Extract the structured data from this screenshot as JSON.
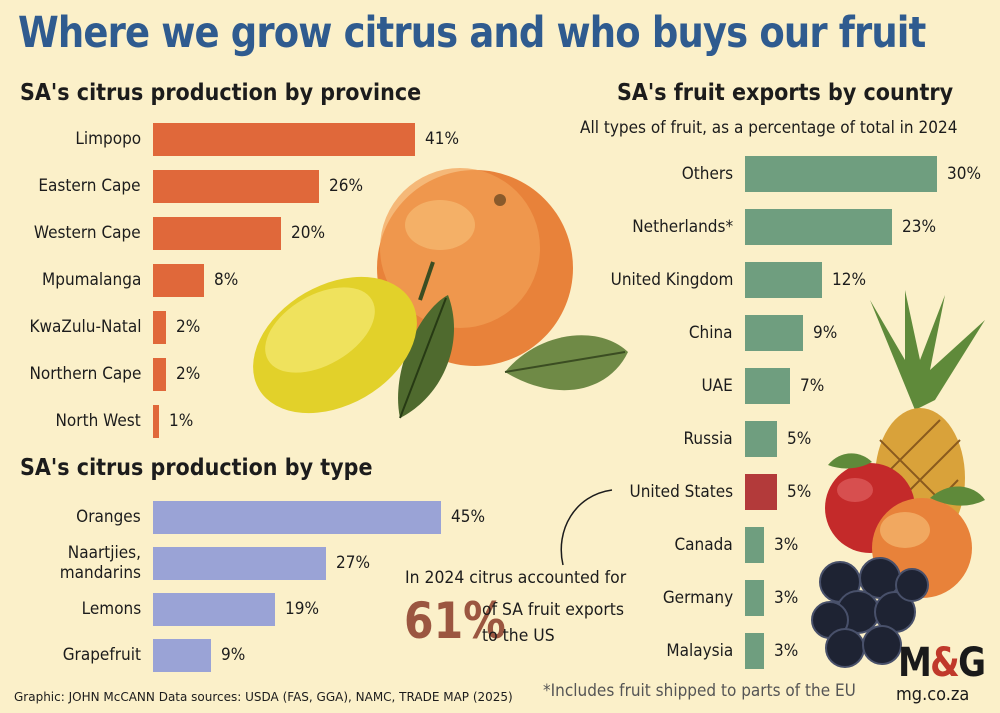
{
  "title": "Where we grow citrus and who buys our fruit",
  "colors": {
    "title": "#2f5b8f",
    "province_bar": "#e0683a",
    "type_bar": "#9aa3d6",
    "export_bar": "#6f9e7f",
    "export_highlight": "#b33a3a",
    "annotation": "#9b5640"
  },
  "chart_data": [
    {
      "type": "bar",
      "orientation": "horizontal",
      "title": "SA's citrus production by province",
      "categories": [
        "Limpopo",
        "Eastern Cape",
        "Western Cape",
        "Mpumalanga",
        "KwaZulu-Natal",
        "Northern Cape",
        "North West"
      ],
      "values": [
        41,
        26,
        20,
        8,
        2,
        2,
        1
      ],
      "value_labels": [
        "41%",
        "26%",
        "20%",
        "8%",
        "2%",
        "2%",
        "1%"
      ],
      "unit": "%"
    },
    {
      "type": "bar",
      "orientation": "horizontal",
      "title": "SA's citrus production by type",
      "categories": [
        "Oranges",
        "Naartjies, mandarins",
        "Lemons",
        "Grapefruit"
      ],
      "values": [
        45,
        27,
        19,
        9
      ],
      "value_labels": [
        "45%",
        "27%",
        "19%",
        "9%"
      ],
      "unit": "%"
    },
    {
      "type": "bar",
      "orientation": "horizontal",
      "title": "SA's fruit exports by country",
      "subtitle": "All types of fruit, as a percentage of total in 2024",
      "categories": [
        "Others",
        "Netherlands*",
        "United Kingdom",
        "China",
        "UAE",
        "Russia",
        "United States",
        "Canada",
        "Germany",
        "Malaysia"
      ],
      "values": [
        30,
        23,
        12,
        9,
        7,
        5,
        5,
        3,
        3,
        3
      ],
      "value_labels": [
        "30%",
        "23%",
        "12%",
        "9%",
        "7%",
        "5%",
        "5%",
        "3%",
        "3%",
        "3%"
      ],
      "highlight": "United States",
      "unit": "%"
    }
  ],
  "annotation": {
    "line1": "In 2024 citrus accounted for",
    "big": "61%",
    "line2": "of SA fruit exports",
    "line3": "to the US"
  },
  "footer": "Graphic: JOHN McCANN  Data sources: USDA (FAS, GGA), NAMC, TRADE MAP (2025)",
  "footnote": "*Includes fruit shipped to parts of the EU",
  "logo": {
    "left": "M",
    "amp": "&",
    "right": "G"
  },
  "site": "mg.co.za",
  "illustrations": [
    "orange",
    "lemon",
    "leaf",
    "pineapple",
    "apple",
    "orange",
    "blueberries"
  ]
}
